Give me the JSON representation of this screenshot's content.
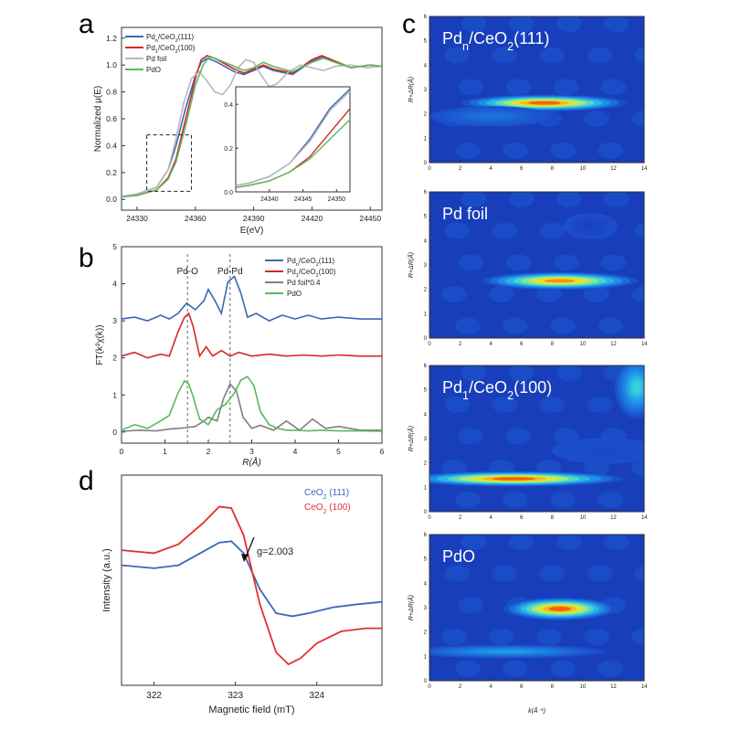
{
  "panels": {
    "a": {
      "letter": "a"
    },
    "b": {
      "letter": "b"
    },
    "c": {
      "letter": "c"
    },
    "d": {
      "letter": "d"
    }
  },
  "chart_data": [
    {
      "id": "a",
      "type": "line",
      "xlabel": "E(eV)",
      "ylabel": "Normalized μ(E)",
      "xlim": [
        24322,
        24456
      ],
      "ylim": [
        -0.08,
        1.28
      ],
      "xticks": [
        24330,
        24360,
        24390,
        24420,
        24450
      ],
      "yticks": [
        0.0,
        0.2,
        0.4,
        0.6,
        0.8,
        1.0,
        1.2
      ],
      "legend": {
        "position": "top-left",
        "entries": [
          {
            "label": "Pdn/CeO2(111)",
            "main": "Pd",
            "sub": "n",
            "mid": "/CeO",
            "sub2": "2",
            "tail": "(111)"
          },
          {
            "label": "Pd1/CeO2(100)",
            "main": "Pd",
            "sub": "1",
            "mid": "/CeO",
            "sub2": "2",
            "tail": "(100)"
          },
          {
            "label": "Pd foil"
          },
          {
            "label": "PdO"
          }
        ]
      },
      "series": [
        {
          "name": "Pdn/CeO2(111)",
          "color": "#3a67b6",
          "x": [
            24322,
            24330,
            24340,
            24346,
            24350,
            24355,
            24360,
            24363,
            24366,
            24370,
            24375,
            24380,
            24385,
            24390,
            24395,
            24400,
            24410,
            24420,
            24425,
            24430,
            24440,
            24450,
            24456
          ],
          "y": [
            0.02,
            0.04,
            0.09,
            0.22,
            0.4,
            0.68,
            0.92,
            1.02,
            1.05,
            1.03,
            0.99,
            0.95,
            0.93,
            0.96,
            0.99,
            0.96,
            0.93,
            1.03,
            1.06,
            1.03,
            0.98,
            1.0,
            0.99
          ]
        },
        {
          "name": "Pd1/CeO2(100)",
          "color": "#d62728",
          "x": [
            24322,
            24330,
            24340,
            24346,
            24350,
            24355,
            24360,
            24363,
            24366,
            24370,
            24375,
            24380,
            24385,
            24390,
            24395,
            24400,
            24410,
            24420,
            24425,
            24430,
            24440,
            24450,
            24456
          ],
          "y": [
            0.02,
            0.03,
            0.07,
            0.16,
            0.3,
            0.6,
            0.9,
            1.04,
            1.07,
            1.05,
            1.01,
            0.97,
            0.94,
            0.97,
            1.0,
            0.97,
            0.94,
            1.04,
            1.07,
            1.04,
            0.98,
            1.0,
            0.99
          ]
        },
        {
          "name": "Pd foil",
          "color": "#b8b8b8",
          "x": [
            24322,
            24330,
            24340,
            24346,
            24350,
            24354,
            24358,
            24362,
            24366,
            24370,
            24374,
            24378,
            24382,
            24386,
            24390,
            24394,
            24398,
            24402,
            24408,
            24414,
            24420,
            24426,
            24432,
            24440,
            24448,
            24456
          ],
          "y": [
            0.02,
            0.04,
            0.09,
            0.22,
            0.45,
            0.72,
            0.9,
            0.95,
            0.88,
            0.8,
            0.78,
            0.85,
            0.98,
            1.04,
            1.02,
            0.92,
            0.84,
            0.86,
            0.95,
            1.0,
            0.98,
            0.96,
            0.99,
            1.0,
            0.98,
            0.99
          ]
        },
        {
          "name": "PdO",
          "color": "#5cb85c",
          "x": [
            24322,
            24330,
            24340,
            24346,
            24350,
            24355,
            24360,
            24364,
            24367,
            24370,
            24375,
            24380,
            24385,
            24390,
            24395,
            24400,
            24410,
            24420,
            24426,
            24432,
            24440,
            24450,
            24456
          ],
          "y": [
            0.02,
            0.03,
            0.07,
            0.15,
            0.28,
            0.55,
            0.85,
            1.0,
            1.06,
            1.05,
            1.02,
            0.99,
            0.96,
            0.98,
            1.02,
            0.99,
            0.95,
            1.02,
            1.05,
            1.02,
            0.98,
            1.0,
            0.99
          ]
        }
      ],
      "inset": {
        "xlim": [
          24335,
          24352
        ],
        "ylim": [
          0.0,
          0.48
        ],
        "xticks": [
          24340,
          24345,
          24350
        ],
        "yticks": [
          0.0,
          0.2,
          0.4
        ],
        "series": [
          {
            "name": "Pdn/CeO2(111)",
            "color": "#3a67b6",
            "x": [
              24335,
              24337,
              24340,
              24343,
              24346,
              24349,
              24352
            ],
            "y": [
              0.03,
              0.04,
              0.07,
              0.13,
              0.24,
              0.38,
              0.47
            ]
          },
          {
            "name": "Pd1/CeO2(100)",
            "color": "#d62728",
            "x": [
              24335,
              24337,
              24340,
              24343,
              24346,
              24349,
              24352
            ],
            "y": [
              0.02,
              0.03,
              0.05,
              0.09,
              0.16,
              0.27,
              0.38
            ]
          },
          {
            "name": "Pd foil",
            "color": "#b8b8b8",
            "x": [
              24335,
              24337,
              24340,
              24343,
              24346,
              24349,
              24352
            ],
            "y": [
              0.03,
              0.04,
              0.07,
              0.13,
              0.23,
              0.37,
              0.46
            ]
          },
          {
            "name": "PdO",
            "color": "#5cb85c",
            "x": [
              24335,
              24337,
              24340,
              24343,
              24346,
              24349,
              24352
            ],
            "y": [
              0.02,
              0.03,
              0.05,
              0.09,
              0.15,
              0.24,
              0.33
            ]
          }
        ]
      }
    },
    {
      "id": "b",
      "type": "line",
      "xlabel": "R(Å)",
      "ylabel": "FT(k²χ(k))",
      "xlim": [
        0,
        6
      ],
      "ylim": [
        -0.3,
        5.0
      ],
      "xticks": [
        0,
        1,
        2,
        3,
        4,
        5,
        6
      ],
      "yticks": [
        0,
        1,
        2,
        3,
        4,
        5
      ],
      "annotations": [
        {
          "text": "Pd-O",
          "x": 1.52
        },
        {
          "text": "Pd-Pd",
          "x": 2.5
        }
      ],
      "legend": {
        "position": "top-right",
        "entries": [
          {
            "label": "Pdn/CeO2(111)",
            "main": "Pd",
            "sub": "n",
            "mid": "/CeO",
            "sub2": "2",
            "tail": "(111)"
          },
          {
            "label": "Pd1/CeO2(100)",
            "main": "Pd",
            "sub": "1",
            "mid": "/CeO",
            "sub2": "2",
            "tail": "(100)"
          },
          {
            "label": "Pd foil*0.4"
          },
          {
            "label": "PdO"
          }
        ]
      },
      "series": [
        {
          "name": "Pdn/CeO2(111)",
          "color": "#3a67b6",
          "x": [
            0,
            0.3,
            0.6,
            0.9,
            1.1,
            1.3,
            1.5,
            1.7,
            1.9,
            2.0,
            2.15,
            2.3,
            2.45,
            2.6,
            2.75,
            2.9,
            3.1,
            3.4,
            3.7,
            4.0,
            4.3,
            4.6,
            5.0,
            5.5,
            6.0
          ],
          "y": [
            3.05,
            3.1,
            3.0,
            3.15,
            3.05,
            3.2,
            3.48,
            3.3,
            3.55,
            3.85,
            3.55,
            3.2,
            4.05,
            4.2,
            3.75,
            3.1,
            3.2,
            3.0,
            3.15,
            3.05,
            3.15,
            3.05,
            3.1,
            3.05,
            3.05
          ]
        },
        {
          "name": "Pd1/CeO2(100)",
          "color": "#d62728",
          "x": [
            0,
            0.3,
            0.6,
            0.9,
            1.1,
            1.3,
            1.45,
            1.55,
            1.65,
            1.8,
            1.95,
            2.1,
            2.3,
            2.5,
            2.7,
            3.0,
            3.4,
            3.8,
            4.2,
            4.6,
            5.0,
            5.5,
            6.0
          ],
          "y": [
            2.05,
            2.15,
            2.0,
            2.1,
            2.05,
            2.7,
            3.1,
            3.2,
            2.85,
            2.05,
            2.3,
            2.05,
            2.2,
            2.05,
            2.15,
            2.05,
            2.1,
            2.05,
            2.08,
            2.05,
            2.08,
            2.05,
            2.05
          ]
        },
        {
          "name": "Pd foil*0.4",
          "color": "#7f7f7f",
          "x": [
            0,
            0.4,
            0.8,
            1.1,
            1.3,
            1.5,
            1.7,
            1.9,
            2.0,
            2.2,
            2.35,
            2.5,
            2.65,
            2.8,
            3.0,
            3.2,
            3.5,
            3.8,
            4.1,
            4.4,
            4.7,
            5.0,
            5.5,
            6.0
          ],
          "y": [
            0.02,
            0.05,
            0.03,
            0.08,
            0.1,
            0.12,
            0.15,
            0.3,
            0.4,
            0.3,
            0.9,
            1.3,
            1.1,
            0.4,
            0.1,
            0.18,
            0.05,
            0.3,
            0.05,
            0.35,
            0.1,
            0.15,
            0.05,
            0.05
          ]
        },
        {
          "name": "PdO",
          "color": "#5cb85c",
          "x": [
            0,
            0.3,
            0.6,
            0.9,
            1.1,
            1.3,
            1.45,
            1.55,
            1.65,
            1.8,
            2.0,
            2.2,
            2.4,
            2.6,
            2.75,
            2.9,
            3.05,
            3.2,
            3.4,
            3.6,
            3.8,
            4.0,
            4.3,
            4.6,
            5.0,
            5.5,
            6.0
          ],
          "y": [
            0.05,
            0.2,
            0.1,
            0.3,
            0.45,
            1.05,
            1.38,
            1.3,
            0.95,
            0.35,
            0.2,
            0.6,
            0.75,
            1.05,
            1.4,
            1.5,
            1.25,
            0.55,
            0.2,
            0.1,
            0.05,
            0.05,
            0.03,
            0.05,
            0.03,
            0.03,
            0.02
          ]
        }
      ]
    },
    {
      "id": "c",
      "type": "heatmap",
      "xlabel": "k(Å⁻¹)",
      "ylabel": "R+ΔR(Å)",
      "xlim": [
        0,
        14
      ],
      "ylim": [
        0,
        6
      ],
      "xticks": [
        0,
        2,
        4,
        6,
        8,
        10,
        12,
        14
      ],
      "yticks": [
        0,
        1,
        2,
        3,
        4,
        5,
        6
      ],
      "maps": [
        {
          "title": "Pdn/CeO2(111)",
          "main": "Pd",
          "sub": "n",
          "mid": "/CeO",
          "sub2": "2",
          "tail": "(111)",
          "features": [
            {
              "k": 7.5,
              "r": 2.45,
              "sk": 3.4,
              "sr": 0.16,
              "a": 1.0
            },
            {
              "k": 4.0,
              "r": 1.9,
              "sk": 2.5,
              "sr": 0.2,
              "a": 0.3
            }
          ]
        },
        {
          "title": "Pd foil",
          "features": [
            {
              "k": 8.5,
              "r": 2.35,
              "sk": 3.2,
              "sr": 0.17,
              "a": 0.95
            },
            {
              "k": 10.5,
              "r": 4.6,
              "sk": 1.1,
              "sr": 0.25,
              "a": 0.15
            }
          ]
        },
        {
          "title": "Pd1/CeO2(100)",
          "main": "Pd",
          "sub": "1",
          "mid": "/CeO",
          "sub2": "2",
          "tail": "(100)",
          "features": [
            {
              "k": 5.5,
              "r": 1.35,
              "sk": 4.5,
              "sr": 0.15,
              "a": 1.0
            },
            {
              "k": 13.5,
              "r": 5.1,
              "sk": 0.9,
              "sr": 0.6,
              "a": 0.55
            },
            {
              "k": 11.5,
              "r": 2.5,
              "sk": 2.2,
              "sr": 0.25,
              "a": 0.18
            }
          ]
        },
        {
          "title": "PdO",
          "features": [
            {
              "k": 8.5,
              "r": 2.95,
              "sk": 2.3,
              "sr": 0.22,
              "a": 1.0
            },
            {
              "k": 5.0,
              "r": 1.2,
              "sk": 4.0,
              "sr": 0.13,
              "a": 0.42
            }
          ]
        }
      ]
    },
    {
      "id": "d",
      "type": "line",
      "xlabel": "Magnetic field (mT)",
      "ylabel": "Intensity (a.u.)",
      "xlim": [
        321.6,
        324.8
      ],
      "xticks": [
        322,
        323,
        324
      ],
      "annotation": "g=2.003",
      "legend": {
        "position": "top-right",
        "entries": [
          {
            "label": "CeO2 (111)",
            "main": "CeO",
            "sub": "2",
            "tail": " (111)",
            "color": "#3a67b6"
          },
          {
            "label": "CeO2 (100)",
            "main": "CeO",
            "sub": "2",
            "tail": " (100)",
            "color": "#e0302e"
          }
        ]
      },
      "series": [
        {
          "name": "CeO2 (111)",
          "color": "#3a67b6",
          "x": [
            321.6,
            322.0,
            322.3,
            322.6,
            322.8,
            322.95,
            323.1,
            323.3,
            323.5,
            323.7,
            323.9,
            324.2,
            324.5,
            324.8
          ],
          "y": [
            0.0,
            -0.1,
            0.0,
            0.45,
            0.75,
            0.8,
            0.4,
            -0.8,
            -1.6,
            -1.7,
            -1.6,
            -1.4,
            -1.3,
            -1.22
          ]
        },
        {
          "name": "CeO2 (100)",
          "color": "#e0302e",
          "x": [
            321.6,
            322.0,
            322.3,
            322.6,
            322.8,
            322.95,
            323.1,
            323.3,
            323.5,
            323.65,
            323.8,
            324.0,
            324.3,
            324.6,
            324.8
          ],
          "y": [
            0.5,
            0.4,
            0.7,
            1.4,
            1.95,
            1.9,
            1.0,
            -1.3,
            -2.9,
            -3.3,
            -3.1,
            -2.6,
            -2.2,
            -2.1,
            -2.1
          ]
        }
      ]
    }
  ]
}
